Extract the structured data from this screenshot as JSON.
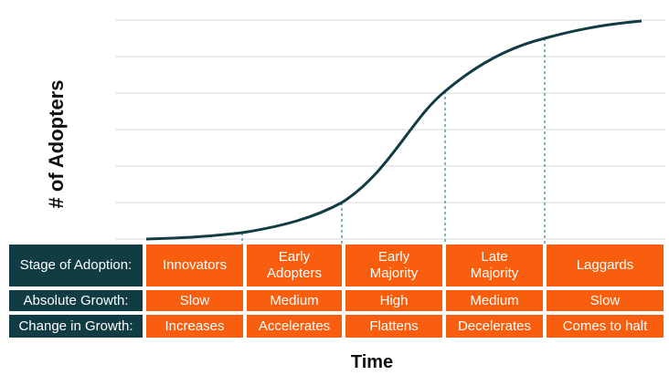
{
  "chart_data": {
    "type": "line",
    "title": "",
    "xlabel": "Time",
    "ylabel": "# of Adopters",
    "grid": true,
    "curve_color": "#123c44",
    "guide_color": "#7fb3bd",
    "stage_boundaries_percent_of_time": [
      17,
      37,
      57,
      76
    ]
  },
  "table": {
    "row_headers": [
      "Stage of Adoption:",
      "Absolute Growth:",
      "Change in Growth:"
    ],
    "stages": [
      {
        "name": "Innovators",
        "growth": "Slow",
        "change": "Increases"
      },
      {
        "name": "Early Adopters",
        "growth": "Medium",
        "change": "Accelerates"
      },
      {
        "name": "Early Majority",
        "growth": "High",
        "change": "Flattens"
      },
      {
        "name": "Late Majority",
        "growth": "Medium",
        "change": "Decelerates"
      },
      {
        "name": "Laggards",
        "growth": "Slow",
        "change": "Comes to halt"
      }
    ],
    "header_color": "#123c44",
    "cell_color": "#f95e0e"
  }
}
